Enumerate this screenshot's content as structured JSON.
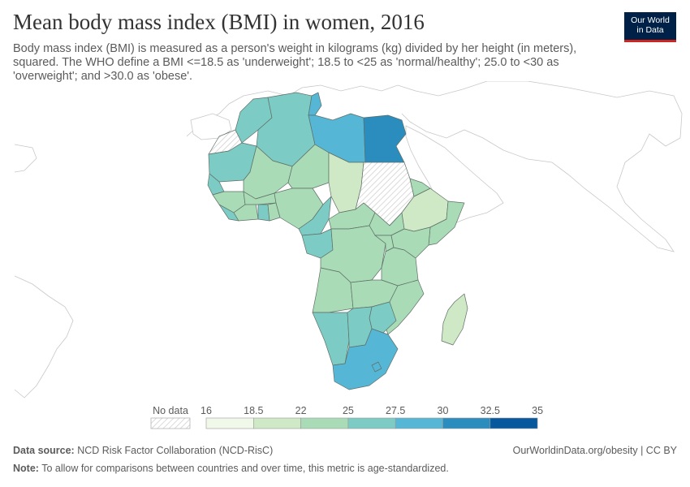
{
  "header": {
    "title": "Mean body mass index (BMI) in women, 2016",
    "subtitle": "Body mass index (BMI) is measured as a person's weight in kilograms (kg) divided by her height (in meters), squared. The WHO define a BMI <=18.5 as 'underweight'; 18.5 to <25 as 'normal/healthy'; 25.0 to <30 as 'overweight'; and >30.0 as 'obese'."
  },
  "logo": {
    "line1": "Our World",
    "line2": "in Data"
  },
  "legend": {
    "no_data_label": "No data",
    "ticks": [
      "16",
      "18.5",
      "22",
      "25",
      "27.5",
      "30",
      "32.5",
      "35"
    ],
    "bins": [
      {
        "from": 16,
        "to": 18.5,
        "color": "#eff8e9"
      },
      {
        "from": 18.5,
        "to": 22,
        "color": "#cfe8c6"
      },
      {
        "from": 22,
        "to": 25,
        "color": "#a9dbb6"
      },
      {
        "from": 25,
        "to": 27.5,
        "color": "#7ccbc5"
      },
      {
        "from": 27.5,
        "to": 30,
        "color": "#56b6d6"
      },
      {
        "from": 30,
        "to": 32.5,
        "color": "#2b8cbe"
      },
      {
        "from": 32.5,
        "to": 35,
        "color": "#08589e"
      }
    ]
  },
  "footer": {
    "source_label": "Data source:",
    "source_text": "NCD Risk Factor Collaboration (NCD-RisC)",
    "link": "OurWorldinData.org/obesity | CC BY",
    "note_label": "Note:",
    "note_text": "To allow for comparisons between countries and over time, this metric is age-standardized."
  },
  "colors": {
    "no_data": "#ffffff",
    "border": "#666666",
    "ocean": "#ffffff",
    "outline": "#c8c8c8"
  }
}
